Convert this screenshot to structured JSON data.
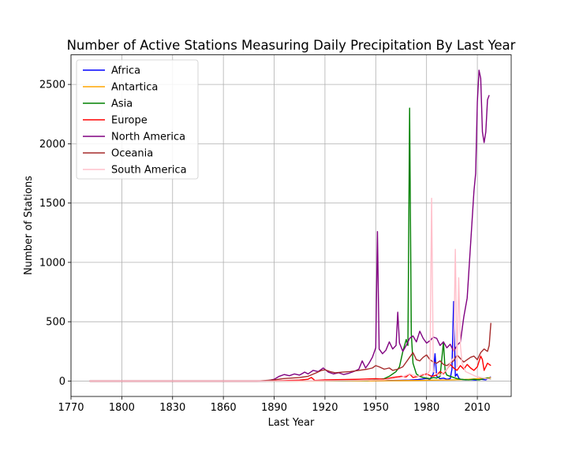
{
  "chart_data": {
    "type": "line",
    "title": "Number of Active Stations Measuring Daily Precipitation By Last Year",
    "xlabel": "Last Year",
    "ylabel": "Number of Stations",
    "xlim": [
      1770,
      2030
    ],
    "ylim": [
      -130,
      2750
    ],
    "xticks": [
      1770,
      1800,
      1830,
      1860,
      1890,
      1920,
      1950,
      1980,
      2010
    ],
    "yticks": [
      0,
      500,
      1000,
      1500,
      2000,
      2500
    ],
    "grid": true,
    "legend_position": "top-left",
    "series": [
      {
        "name": "Africa",
        "color": "#0000ff",
        "points": [
          [
            1781,
            0
          ],
          [
            1890,
            0
          ],
          [
            1920,
            1
          ],
          [
            1950,
            2
          ],
          [
            1960,
            5
          ],
          [
            1970,
            8
          ],
          [
            1975,
            12
          ],
          [
            1978,
            18
          ],
          [
            1980,
            22
          ],
          [
            1982,
            15
          ],
          [
            1984,
            60
          ],
          [
            1985,
            230
          ],
          [
            1986,
            40
          ],
          [
            1988,
            20
          ],
          [
            1990,
            25
          ],
          [
            1992,
            15
          ],
          [
            1994,
            20
          ],
          [
            1995,
            100
          ],
          [
            1996,
            670
          ],
          [
            1997,
            40
          ],
          [
            1998,
            60
          ],
          [
            1999,
            25
          ],
          [
            2000,
            15
          ],
          [
            2003,
            10
          ],
          [
            2006,
            12
          ],
          [
            2009,
            8
          ],
          [
            2012,
            15
          ],
          [
            2015,
            10
          ],
          [
            2018,
            35
          ]
        ]
      },
      {
        "name": "Antartica",
        "color": "#ffa500",
        "points": [
          [
            1781,
            0
          ],
          [
            1940,
            0
          ],
          [
            1960,
            3
          ],
          [
            1975,
            5
          ],
          [
            1985,
            8
          ],
          [
            1995,
            10
          ],
          [
            2000,
            12
          ],
          [
            2005,
            15
          ],
          [
            2010,
            20
          ],
          [
            2015,
            25
          ],
          [
            2018,
            30
          ]
        ]
      },
      {
        "name": "Asia",
        "color": "#008000",
        "points": [
          [
            1781,
            0
          ],
          [
            1890,
            0
          ],
          [
            1930,
            2
          ],
          [
            1945,
            5
          ],
          [
            1955,
            20
          ],
          [
            1958,
            40
          ],
          [
            1960,
            60
          ],
          [
            1962,
            80
          ],
          [
            1964,
            120
          ],
          [
            1966,
            250
          ],
          [
            1968,
            350
          ],
          [
            1969,
            300
          ],
          [
            1970,
            2300
          ],
          [
            1971,
            400
          ],
          [
            1972,
            150
          ],
          [
            1974,
            60
          ],
          [
            1976,
            40
          ],
          [
            1978,
            30
          ],
          [
            1980,
            25
          ],
          [
            1982,
            20
          ],
          [
            1984,
            30
          ],
          [
            1986,
            25
          ],
          [
            1988,
            40
          ],
          [
            1990,
            330
          ],
          [
            1991,
            80
          ],
          [
            1992,
            50
          ],
          [
            1994,
            40
          ],
          [
            1996,
            30
          ],
          [
            1998,
            20
          ],
          [
            2000,
            15
          ],
          [
            2002,
            12
          ],
          [
            2005,
            10
          ],
          [
            2008,
            15
          ],
          [
            2011,
            10
          ],
          [
            2014,
            20
          ],
          [
            2016,
            25
          ],
          [
            2018,
            15
          ]
        ]
      },
      {
        "name": "Europe",
        "color": "#ff0000",
        "points": [
          [
            1781,
            0
          ],
          [
            1880,
            0
          ],
          [
            1895,
            3
          ],
          [
            1905,
            8
          ],
          [
            1910,
            15
          ],
          [
            1912,
            30
          ],
          [
            1914,
            5
          ],
          [
            1920,
            10
          ],
          [
            1930,
            12
          ],
          [
            1940,
            15
          ],
          [
            1950,
            20
          ],
          [
            1955,
            15
          ],
          [
            1960,
            30
          ],
          [
            1965,
            40
          ],
          [
            1968,
            35
          ],
          [
            1970,
            60
          ],
          [
            1972,
            30
          ],
          [
            1975,
            40
          ],
          [
            1980,
            60
          ],
          [
            1983,
            40
          ],
          [
            1986,
            50
          ],
          [
            1988,
            80
          ],
          [
            1990,
            60
          ],
          [
            1992,
            100
          ],
          [
            1994,
            140
          ],
          [
            1996,
            110
          ],
          [
            1998,
            90
          ],
          [
            2000,
            130
          ],
          [
            2002,
            100
          ],
          [
            2004,
            140
          ],
          [
            2006,
            110
          ],
          [
            2008,
            90
          ],
          [
            2010,
            120
          ],
          [
            2012,
            210
          ],
          [
            2013,
            180
          ],
          [
            2014,
            90
          ],
          [
            2016,
            150
          ],
          [
            2018,
            130
          ]
        ]
      },
      {
        "name": "North America",
        "color": "#800080",
        "points": [
          [
            1781,
            0
          ],
          [
            1885,
            0
          ],
          [
            1890,
            15
          ],
          [
            1893,
            40
          ],
          [
            1896,
            55
          ],
          [
            1899,
            45
          ],
          [
            1902,
            60
          ],
          [
            1905,
            50
          ],
          [
            1908,
            75
          ],
          [
            1910,
            60
          ],
          [
            1913,
            90
          ],
          [
            1916,
            80
          ],
          [
            1919,
            110
          ],
          [
            1922,
            75
          ],
          [
            1925,
            60
          ],
          [
            1928,
            70
          ],
          [
            1931,
            55
          ],
          [
            1934,
            65
          ],
          [
            1937,
            80
          ],
          [
            1940,
            100
          ],
          [
            1942,
            170
          ],
          [
            1944,
            110
          ],
          [
            1946,
            150
          ],
          [
            1948,
            200
          ],
          [
            1950,
            280
          ],
          [
            1951,
            1260
          ],
          [
            1952,
            270
          ],
          [
            1954,
            230
          ],
          [
            1956,
            260
          ],
          [
            1958,
            330
          ],
          [
            1960,
            270
          ],
          [
            1962,
            300
          ],
          [
            1963,
            580
          ],
          [
            1964,
            320
          ],
          [
            1966,
            250
          ],
          [
            1968,
            300
          ],
          [
            1970,
            360
          ],
          [
            1972,
            380
          ],
          [
            1974,
            330
          ],
          [
            1976,
            420
          ],
          [
            1978,
            360
          ],
          [
            1980,
            320
          ],
          [
            1982,
            340
          ],
          [
            1984,
            370
          ],
          [
            1986,
            360
          ],
          [
            1988,
            300
          ],
          [
            1990,
            330
          ],
          [
            1992,
            280
          ],
          [
            1994,
            310
          ],
          [
            1996,
            250
          ],
          [
            1998,
            300
          ],
          [
            2000,
            330
          ],
          [
            2002,
            540
          ],
          [
            2004,
            700
          ],
          [
            2006,
            1150
          ],
          [
            2008,
            1600
          ],
          [
            2009,
            1750
          ],
          [
            2010,
            2350
          ],
          [
            2011,
            2620
          ],
          [
            2012,
            2550
          ],
          [
            2013,
            2100
          ],
          [
            2014,
            2010
          ],
          [
            2015,
            2100
          ],
          [
            2016,
            2370
          ],
          [
            2017,
            2410
          ]
        ]
      },
      {
        "name": "Oceania",
        "color": "#a52a2a",
        "points": [
          [
            1781,
            0
          ],
          [
            1880,
            0
          ],
          [
            1890,
            10
          ],
          [
            1895,
            20
          ],
          [
            1900,
            25
          ],
          [
            1905,
            30
          ],
          [
            1910,
            40
          ],
          [
            1915,
            70
          ],
          [
            1918,
            90
          ],
          [
            1920,
            95
          ],
          [
            1923,
            80
          ],
          [
            1926,
            70
          ],
          [
            1930,
            75
          ],
          [
            1935,
            80
          ],
          [
            1940,
            90
          ],
          [
            1945,
            100
          ],
          [
            1948,
            110
          ],
          [
            1950,
            130
          ],
          [
            1952,
            120
          ],
          [
            1955,
            100
          ],
          [
            1958,
            110
          ],
          [
            1960,
            90
          ],
          [
            1963,
            100
          ],
          [
            1966,
            120
          ],
          [
            1968,
            160
          ],
          [
            1970,
            200
          ],
          [
            1972,
            240
          ],
          [
            1974,
            180
          ],
          [
            1976,
            170
          ],
          [
            1978,
            200
          ],
          [
            1980,
            220
          ],
          [
            1982,
            180
          ],
          [
            1984,
            160
          ],
          [
            1986,
            150
          ],
          [
            1988,
            170
          ],
          [
            1990,
            140
          ],
          [
            1992,
            130
          ],
          [
            1994,
            150
          ],
          [
            1996,
            170
          ],
          [
            1998,
            220
          ],
          [
            2000,
            190
          ],
          [
            2002,
            160
          ],
          [
            2004,
            180
          ],
          [
            2006,
            200
          ],
          [
            2008,
            210
          ],
          [
            2010,
            180
          ],
          [
            2012,
            240
          ],
          [
            2014,
            270
          ],
          [
            2016,
            250
          ],
          [
            2017,
            300
          ],
          [
            2018,
            490
          ]
        ]
      },
      {
        "name": "South America",
        "color": "#ffc0cb",
        "points": [
          [
            1781,
            0
          ],
          [
            1890,
            0
          ],
          [
            1920,
            2
          ],
          [
            1940,
            5
          ],
          [
            1955,
            10
          ],
          [
            1960,
            20
          ],
          [
            1965,
            30
          ],
          [
            1970,
            60
          ],
          [
            1972,
            50
          ],
          [
            1975,
            40
          ],
          [
            1978,
            60
          ],
          [
            1980,
            45
          ],
          [
            1982,
            90
          ],
          [
            1983,
            1540
          ],
          [
            1984,
            80
          ],
          [
            1986,
            60
          ],
          [
            1988,
            50
          ],
          [
            1990,
            70
          ],
          [
            1992,
            100
          ],
          [
            1994,
            150
          ],
          [
            1996,
            200
          ],
          [
            1997,
            1110
          ],
          [
            1998,
            120
          ],
          [
            1999,
            870
          ],
          [
            2000,
            300
          ],
          [
            2001,
            150
          ],
          [
            2003,
            80
          ],
          [
            2006,
            60
          ],
          [
            2009,
            40
          ],
          [
            2012,
            30
          ],
          [
            2015,
            20
          ],
          [
            2018,
            15
          ]
        ]
      }
    ]
  }
}
